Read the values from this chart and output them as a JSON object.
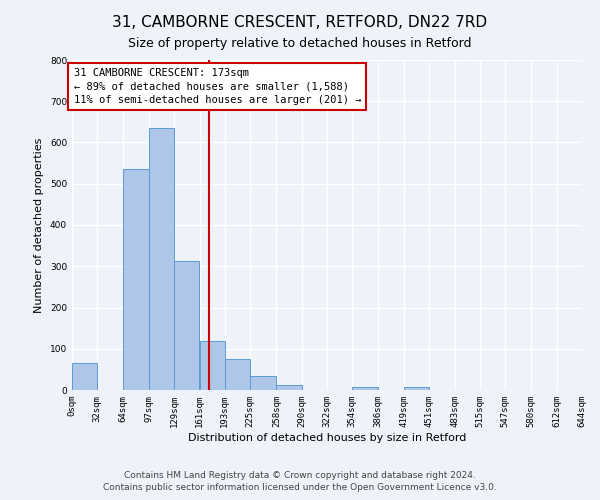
{
  "title": "31, CAMBORNE CRESCENT, RETFORD, DN22 7RD",
  "subtitle": "Size of property relative to detached houses in Retford",
  "xlabel": "Distribution of detached houses by size in Retford",
  "ylabel": "Number of detached properties",
  "bin_edges": [
    0,
    32,
    64,
    97,
    129,
    161,
    193,
    225,
    258,
    290,
    322,
    354,
    386,
    419,
    451,
    483,
    515,
    547,
    580,
    612,
    644
  ],
  "bin_labels": [
    "0sqm",
    "32sqm",
    "64sqm",
    "97sqm",
    "129sqm",
    "161sqm",
    "193sqm",
    "225sqm",
    "258sqm",
    "290sqm",
    "322sqm",
    "354sqm",
    "386sqm",
    "419sqm",
    "451sqm",
    "483sqm",
    "515sqm",
    "547sqm",
    "580sqm",
    "612sqm",
    "644sqm"
  ],
  "counts": [
    65,
    0,
    535,
    635,
    313,
    120,
    75,
    33,
    12,
    0,
    0,
    8,
    0,
    8,
    0,
    0,
    0,
    0,
    0,
    0
  ],
  "bar_color": "#aec6e8",
  "bar_edge_color": "#5b9bd5",
  "vline_x": 173,
  "vline_color": "#cc0000",
  "annotation_title": "31 CAMBORNE CRESCENT: 173sqm",
  "annotation_line1": "← 89% of detached houses are smaller (1,588)",
  "annotation_line2": "11% of semi-detached houses are larger (201) →",
  "annotation_box_color": "#cc0000",
  "ylim": [
    0,
    800
  ],
  "yticks": [
    0,
    100,
    200,
    300,
    400,
    500,
    600,
    700,
    800
  ],
  "footer_line1": "Contains HM Land Registry data © Crown copyright and database right 2024.",
  "footer_line2": "Contains public sector information licensed under the Open Government Licence v3.0.",
  "background_color": "#eef2f9",
  "grid_color": "#ffffff",
  "title_fontsize": 11,
  "subtitle_fontsize": 9,
  "axis_label_fontsize": 8,
  "tick_fontsize": 6.5,
  "annotation_fontsize": 7.5,
  "footer_fontsize": 6.5
}
